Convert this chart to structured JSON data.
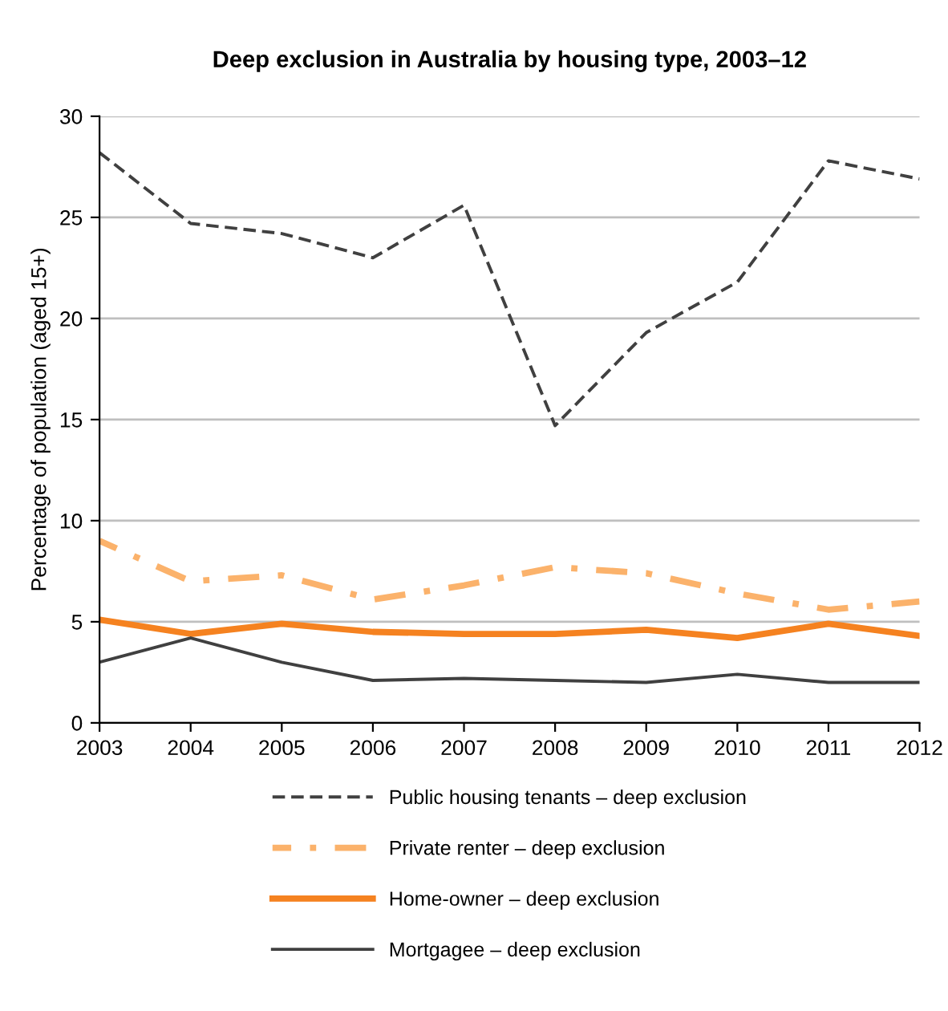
{
  "chart_data": {
    "type": "line",
    "title": "Deep exclusion in Australia by housing type, 2003–12",
    "ylabel": "Percentage of population (aged 15+)",
    "x": [
      2003,
      2004,
      2005,
      2006,
      2007,
      2008,
      2009,
      2010,
      2011,
      2012
    ],
    "xlim": [
      2003,
      2012
    ],
    "xticks": [
      2003,
      2004,
      2005,
      2006,
      2007,
      2008,
      2009,
      2010,
      2011,
      2012
    ],
    "ylim": [
      0,
      30
    ],
    "yticks": [
      0,
      5,
      10,
      15,
      20,
      25,
      30
    ],
    "grid": "y",
    "legend": "bottom",
    "marker": "none",
    "series": [
      {
        "name": "Public housing tenants – deep exclusion",
        "color": "#404040",
        "line_style": "dashed",
        "values": [
          28.2,
          24.7,
          24.2,
          23.0,
          25.6,
          14.7,
          19.3,
          21.8,
          27.8,
          26.9
        ]
      },
      {
        "name": "Private renter – deep exclusion",
        "color": "#fbb26b",
        "line_style": "dashdot",
        "values": [
          9.0,
          7.0,
          7.3,
          6.1,
          6.8,
          7.7,
          7.4,
          6.4,
          5.6,
          6.0
        ]
      },
      {
        "name": "Home-owner – deep exclusion",
        "color": "#f58220",
        "line_style": "solid",
        "values": [
          5.1,
          4.4,
          4.9,
          4.5,
          4.4,
          4.4,
          4.6,
          4.2,
          4.9,
          4.3
        ]
      },
      {
        "name": "Mortgagee – deep exclusion",
        "color": "#404040",
        "line_style": "solid",
        "values": [
          3.0,
          4.2,
          3.0,
          2.1,
          2.2,
          2.1,
          2.0,
          2.4,
          2.0,
          2.0
        ]
      }
    ]
  }
}
